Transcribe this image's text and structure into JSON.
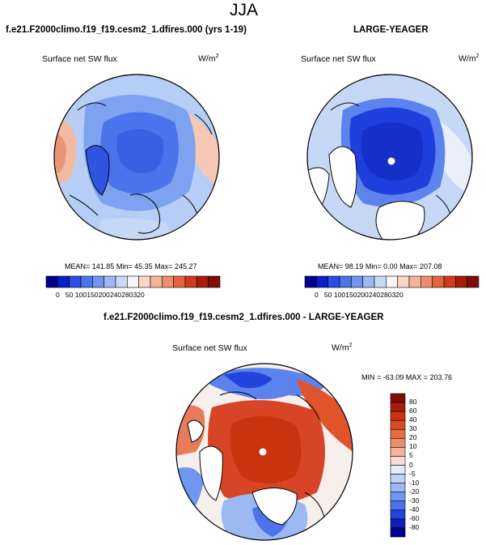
{
  "season_title": "JJA",
  "panels": [
    {
      "title": "f.e21.F2000climo.f19_f19.cesm2_1.dfires.000 (yrs 1-19)",
      "variable": "Surface net SW flux",
      "units_base": "W/m",
      "units_sup": "2",
      "stats": {
        "mean_label": "MEAN=",
        "mean": "141.85",
        "min_label": "Min=",
        "min": "45.35",
        "max_label": "Max=",
        "max": "245.27"
      },
      "pole_marker": false
    },
    {
      "title": "LARGE-YEAGER",
      "variable": "Surface net SW flux",
      "units_base": "W/m",
      "units_sup": "2",
      "stats": {
        "mean_label": "MEAN=",
        "mean": "98.19",
        "min_label": "Min=",
        "min": "0.00",
        "max_label": "Max=",
        "max": "207.08"
      },
      "pole_marker": true
    },
    {
      "title": "f.e21.F2000climo.f19_f19.cesm2_1.dfires.000 - LARGE-YEAGER",
      "variable": "Surface net SW flux",
      "units_base": "W/m",
      "units_sup": "2",
      "stats_text": "MIN = -63.09 MAX = 203.76",
      "pole_marker": true
    }
  ],
  "chart_data": [
    {
      "type": "heatmap",
      "projection": "north-polar-stereographic",
      "title": "f.e21.F2000climo.f19_f19.cesm2_1.dfires.000 (yrs 1-19)",
      "variable": "Surface net SW flux",
      "units": "W/m2",
      "mean": 141.85,
      "min": 45.35,
      "max": 245.27,
      "colorbar_levels": [
        0,
        50,
        100,
        150,
        200,
        240,
        280,
        320
      ]
    },
    {
      "type": "heatmap",
      "projection": "north-polar-stereographic",
      "title": "LARGE-YEAGER",
      "variable": "Surface net SW flux",
      "units": "W/m2",
      "mean": 98.19,
      "min": 0.0,
      "max": 207.08,
      "colorbar_levels": [
        0,
        50,
        100,
        150,
        200,
        240,
        280,
        320
      ]
    },
    {
      "type": "heatmap",
      "projection": "north-polar-stereographic",
      "title": "f.e21.F2000climo.f19_f19.cesm2_1.dfires.000 - LARGE-YEAGER",
      "variable": "Surface net SW flux",
      "units": "W/m2",
      "min": -63.09,
      "max": 203.76,
      "colorbar_levels": [
        80,
        60,
        40,
        30,
        20,
        10,
        5,
        0,
        -5,
        -10,
        -20,
        -30,
        -40,
        -60,
        -80
      ],
      "colorbar_orientation": "vertical"
    }
  ],
  "colorbars": {
    "abs_labels": [
      "0",
      "50",
      "100",
      "150",
      "200",
      "240",
      "280",
      "320"
    ],
    "abs_colors": [
      "#00008f",
      "#0a1fc8",
      "#2a4de6",
      "#4a73ec",
      "#6f95ef",
      "#9cb9f3",
      "#c8d9f7",
      "#f7f5f5",
      "#f9d6c8",
      "#f5b39c",
      "#ef8d6f",
      "#e4643f",
      "#d03a1c",
      "#a81d0a",
      "#7f0d05"
    ],
    "diff_labels": [
      "80",
      "60",
      "40",
      "30",
      "20",
      "10",
      "5",
      "0",
      "-5",
      "-10",
      "-20",
      "-30",
      "-40",
      "-60",
      "-80"
    ],
    "diff_colors": [
      "#7f0d05",
      "#a81d0a",
      "#c9330f",
      "#dc4a22",
      "#e56a45",
      "#ed8d6d",
      "#f3b39c",
      "#f9ddd1",
      "#e3ecfa",
      "#bfd3f5",
      "#9cb9f3",
      "#7097ef",
      "#4c73ec",
      "#2244dc",
      "#0c1fbd",
      "#00008f"
    ]
  }
}
